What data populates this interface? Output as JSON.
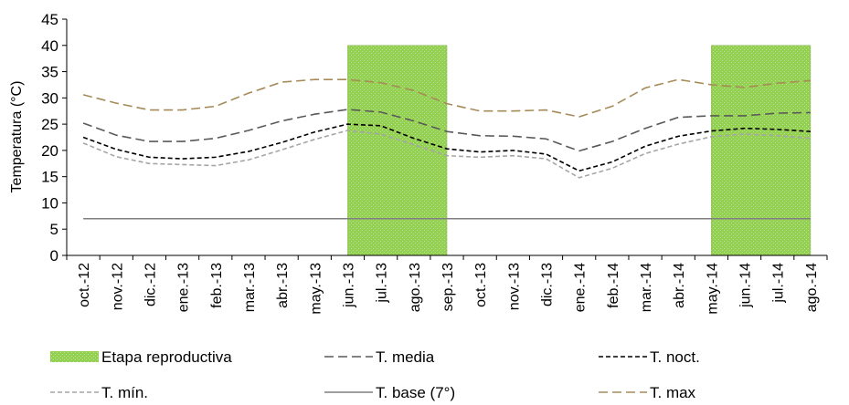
{
  "chart_data": {
    "type": "line",
    "ylabel": "Temperatura  (°C)",
    "ylim": [
      0,
      45
    ],
    "yticks": [
      "0",
      "5",
      "10",
      "15",
      "20",
      "25",
      "30",
      "35",
      "40",
      "45"
    ],
    "categories": [
      "oct.-12",
      "nov.-12",
      "dic.-12",
      "ene.-13",
      "feb.-13",
      "mar.-13",
      "abr.-13",
      "may.-13",
      "jun.-13",
      "jul.-13",
      "ago.-13",
      "sep.-13",
      "oct.-13",
      "nov.-13",
      "dic.-13",
      "ene.-14",
      "feb.-14",
      "mar.-14",
      "abr.-14",
      "may.-14",
      "jun.-14",
      "jul.-14",
      "ago.-14"
    ],
    "bands": {
      "name": "Etapa reproductiva",
      "color": "#92d050",
      "ranges": [
        [
          "jun.-13",
          "sep.-13"
        ],
        [
          "may.-14",
          "ago.-14"
        ]
      ],
      "value": 40
    },
    "series": [
      {
        "name": "T. media",
        "color": "#595959",
        "dash": "10,5",
        "values": [
          25.2,
          22.9,
          21.7,
          21.7,
          22.3,
          23.8,
          25.6,
          26.9,
          27.8,
          27.3,
          25.6,
          23.6,
          22.8,
          22.7,
          22.2,
          19.9,
          21.7,
          24.2,
          26.3,
          26.6,
          26.6,
          27.1,
          27.2
        ]
      },
      {
        "name": "T. noct.",
        "color": "#000000",
        "dash": "5,3",
        "values": [
          22.5,
          20.2,
          18.7,
          18.4,
          18.7,
          19.8,
          21.5,
          23.5,
          25.0,
          24.7,
          22.3,
          20.3,
          19.7,
          20.0,
          19.3,
          16.1,
          17.8,
          20.8,
          22.7,
          23.7,
          24.2,
          24.0,
          23.6
        ]
      },
      {
        "name": "T. mín.",
        "color": "#a6a6a6",
        "dash": "5,3",
        "values": [
          21.4,
          18.8,
          17.5,
          17.3,
          17.1,
          18.2,
          20.1,
          22.1,
          23.8,
          23.1,
          21.1,
          19.0,
          18.7,
          19.0,
          18.4,
          14.8,
          16.6,
          19.4,
          21.2,
          22.6,
          23.1,
          22.8,
          22.3
        ]
      },
      {
        "name": "T. base (7°)",
        "color": "#7f7f7f",
        "dash": "none",
        "values": [
          7,
          7,
          7,
          7,
          7,
          7,
          7,
          7,
          7,
          7,
          7,
          7,
          7,
          7,
          7,
          7,
          7,
          7,
          7,
          7,
          7,
          7,
          7
        ]
      },
      {
        "name": "T. max",
        "color": "#a68b58",
        "dash": "10,5",
        "values": [
          30.6,
          29.0,
          27.7,
          27.7,
          28.4,
          30.9,
          33.0,
          33.5,
          33.5,
          32.9,
          31.4,
          28.9,
          27.5,
          27.5,
          27.7,
          26.4,
          28.4,
          31.9,
          33.5,
          32.5,
          32.0,
          32.8,
          33.3
        ]
      }
    ],
    "legend": [
      "Etapa reproductiva",
      "T. media",
      "T. noct.",
      "T. mín.",
      "T. base (7°)",
      "T. max"
    ]
  }
}
